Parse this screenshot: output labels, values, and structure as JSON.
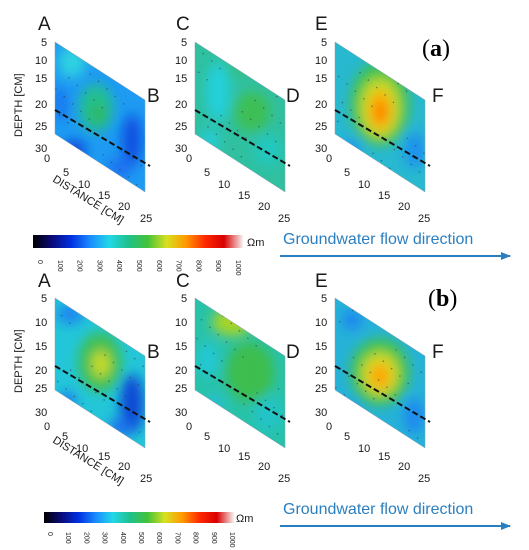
{
  "corner_labels": [
    "A",
    "B",
    "C",
    "D",
    "E",
    "F"
  ],
  "panels": [
    {
      "id": "a",
      "tag_open": "(",
      "tag_letter": "a",
      "tag_close": ")",
      "depth_axis_title": "DEPTH [CM]",
      "depth_ticks": [
        "5",
        "10",
        "15",
        "20",
        "25",
        "30"
      ],
      "distance_axis_title": "DISTANCE [CM]",
      "distance_ticks": [
        "0",
        "5",
        "10",
        "15",
        "20",
        "25"
      ],
      "colorbar_ticks": [
        "0",
        "100",
        "200",
        "300",
        "400",
        "500",
        "600",
        "700",
        "800",
        "900",
        "1000"
      ],
      "colorbar_unit": "Ωm",
      "flow_label": "Groundwater flow direction"
    },
    {
      "id": "b",
      "tag_open": "(",
      "tag_letter": "b",
      "tag_close": ")",
      "depth_axis_title": "DEPTH [CM]",
      "depth_ticks": [
        "5",
        "10",
        "15",
        "20",
        "25",
        "30"
      ],
      "distance_axis_title": "DISTANCE [CM]",
      "distance_ticks": [
        "0",
        "5",
        "10",
        "15",
        "20",
        "25"
      ],
      "colorbar_ticks": [
        "0",
        "100",
        "200",
        "300",
        "400",
        "500",
        "600",
        "700",
        "800",
        "900",
        "1000"
      ],
      "colorbar_unit": "Ωm",
      "flow_label": "Groundwater flow direction"
    }
  ],
  "colorscale": [
    "#000000",
    "#0a0a7a",
    "#0030e0",
    "#1a8cff",
    "#22d8e8",
    "#1ec08a",
    "#44c23a",
    "#d8e020",
    "#ff9a00",
    "#ff2a00",
    "#d80000",
    "#f6f2f2"
  ],
  "colors": {
    "flow_arrow": "#2a7fc0",
    "dashed_line": "#111111"
  }
}
